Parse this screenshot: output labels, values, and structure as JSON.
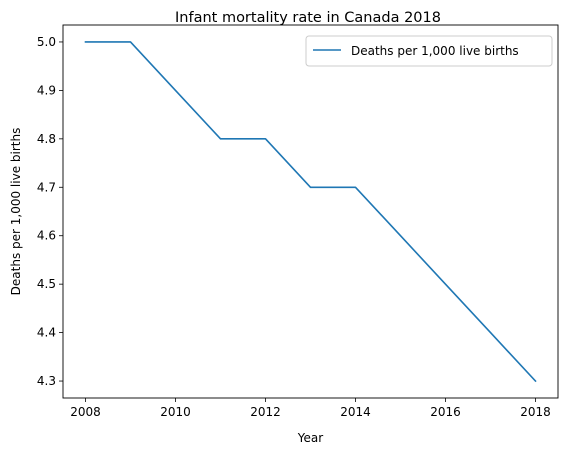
{
  "chart_data": {
    "type": "line",
    "title": "Infant mortality rate in Canada 2018",
    "xlabel": "Year",
    "ylabel": "Deaths per 1,000 live births",
    "x": [
      2008,
      2009,
      2010,
      2011,
      2012,
      2013,
      2014,
      2015,
      2016,
      2017,
      2018
    ],
    "series": [
      {
        "name": "Deaths per 1,000 live births",
        "values": [
          5.0,
          5.0,
          4.9,
          4.8,
          4.8,
          4.7,
          4.7,
          4.6,
          4.5,
          4.4,
          4.3
        ],
        "color": "#1f77b4"
      }
    ],
    "xticks": [
      2008,
      2010,
      2012,
      2014,
      2016,
      2018
    ],
    "xtick_labels": [
      "2008",
      "2010",
      "2012",
      "2014",
      "2016",
      "2018"
    ],
    "yticks": [
      4.3,
      4.4,
      4.5,
      4.6,
      4.7,
      4.8,
      4.9,
      5.0
    ],
    "ytick_labels": [
      "4.3",
      "4.4",
      "4.5",
      "4.6",
      "4.7",
      "4.8",
      "4.9",
      "5.0"
    ],
    "xlim": [
      2007.5,
      2018.5
    ],
    "ylim": [
      4.265,
      5.035
    ],
    "grid": false,
    "legend_position": "top-right"
  }
}
